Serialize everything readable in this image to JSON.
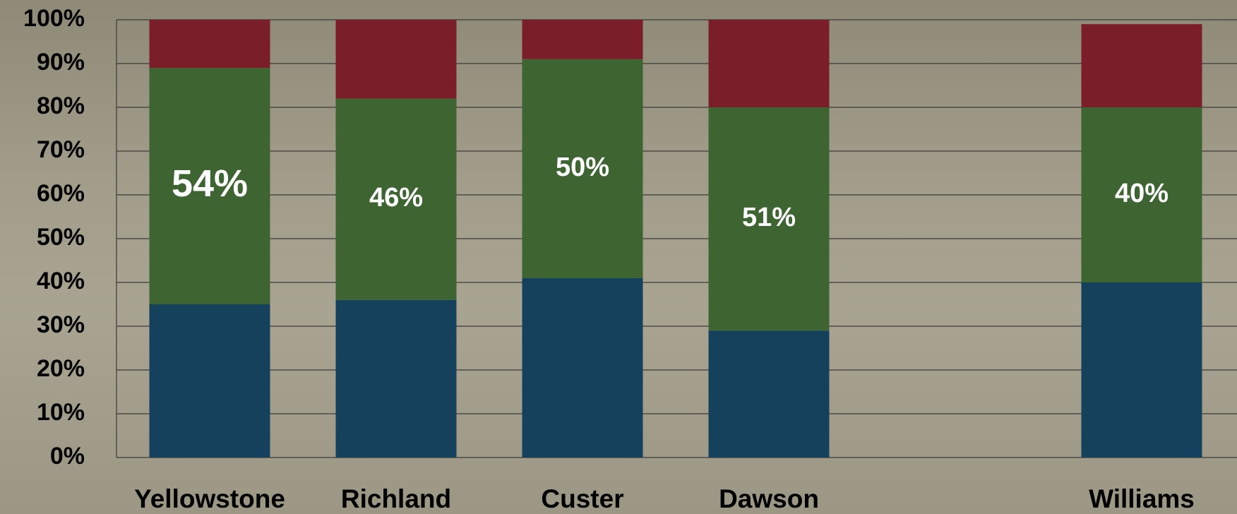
{
  "chart_data": {
    "type": "stacked_bar",
    "categories": [
      "Yellowstone",
      "Richland",
      "Custer",
      "Dawson",
      null,
      "Williams"
    ],
    "series": [
      {
        "color": "#16415c",
        "values": [
          35,
          36,
          41,
          29,
          null,
          40
        ]
      },
      {
        "color": "#3d6431",
        "values": [
          54,
          46,
          50,
          51,
          null,
          40
        ],
        "value_labels": [
          "54%",
          "46%",
          "50%",
          "51%",
          null,
          "40%"
        ]
      },
      {
        "color": "#7a1f29",
        "values": [
          11,
          18,
          9,
          20,
          null,
          19
        ]
      }
    ],
    "ylim": [
      0,
      100
    ],
    "yticks": [
      {
        "value": 0,
        "label": "0%"
      },
      {
        "value": 10,
        "label": "10%"
      },
      {
        "value": 20,
        "label": "20%"
      },
      {
        "value": 30,
        "label": "30%"
      },
      {
        "value": 40,
        "label": "40%"
      },
      {
        "value": 50,
        "label": "50%"
      },
      {
        "value": 60,
        "label": "60%"
      },
      {
        "value": 70,
        "label": "70%"
      },
      {
        "value": 80,
        "label": "80%"
      },
      {
        "value": 90,
        "label": "90%"
      },
      {
        "value": 100,
        "label": "100%"
      }
    ],
    "grid": true
  }
}
